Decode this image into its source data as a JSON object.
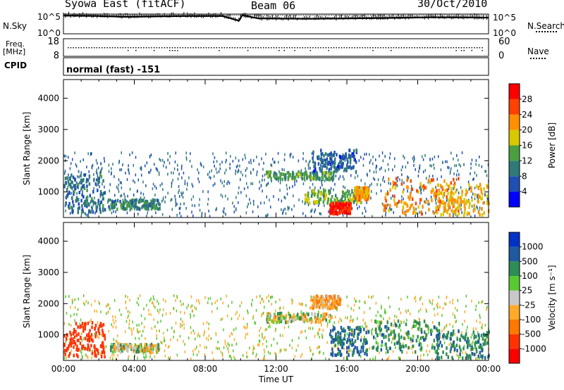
{
  "header": {
    "station": "Syowa East (fitACF)",
    "beam": "Beam 06",
    "date": "30/Oct/2010"
  },
  "left_labels": {
    "nsky": "N.Sky",
    "freq": "Freq.",
    "freq_unit": "[MHz]",
    "cpid": "CPID"
  },
  "right_labels": {
    "nsearch": "N.Search",
    "nave": "Nave"
  },
  "status": {
    "cpid_text": "normal (fast) -151"
  },
  "chart_data": [
    {
      "type": "line",
      "name": "noise-strip",
      "left_ticks": [
        "10^5",
        "10^0"
      ],
      "right_ticks": [
        "10^5",
        "10^0"
      ],
      "ylim_log10": [
        0,
        5
      ],
      "xlim_hours": [
        0,
        24
      ],
      "series": [
        {
          "label": "N.Sky",
          "style": "solid",
          "level_log10": 4.6,
          "x_hours": [
            0,
            2,
            3.5,
            5,
            7,
            9,
            9.9,
            10.1,
            11,
            14,
            18,
            21,
            24
          ],
          "y_log10": [
            4.6,
            4.5,
            4.3,
            4.4,
            4.5,
            4.5,
            3.3,
            4.7,
            3.9,
            3.8,
            4.0,
            4.2,
            4.1
          ]
        },
        {
          "label": "N.Search",
          "style": "dotted",
          "level_log10": 4.7
        }
      ]
    },
    {
      "type": "scatter",
      "name": "freq-nave-strip",
      "left_ticks": [
        "18",
        "8"
      ],
      "right_ticks": [
        "60",
        "0"
      ],
      "freq_mhz_range": [
        8,
        18
      ],
      "nave_range": [
        0,
        60
      ],
      "freq_mhz": 12.8,
      "xlim_hours": [
        0,
        24
      ]
    },
    {
      "type": "heatmap",
      "name": "power",
      "xlabel": "Time UT",
      "ylabel": "Slant Range [km]",
      "xlim_hours": [
        0,
        24
      ],
      "ylim_km": [
        180,
        4600
      ],
      "yticks": [
        "1000",
        "2000",
        "3000",
        "4000"
      ],
      "colorbar_title": "Power [dB]",
      "colorbar_ticks": [
        "4",
        "8",
        "12",
        "16",
        "20",
        "24",
        "28"
      ],
      "colorbar_colors": [
        "#0000ff",
        "#1f4fb0",
        "#2f7a78",
        "#4aa040",
        "#d8c800",
        "#ff9000",
        "#ff4000",
        "#ff0000"
      ],
      "regions": [
        {
          "t": [
            0.0,
            2.3
          ],
          "r": [
            400,
            1600
          ],
          "level": 9
        },
        {
          "t": [
            2.5,
            5.4
          ],
          "r": [
            500,
            800
          ],
          "level": 11
        },
        {
          "t": [
            11.4,
            15.2
          ],
          "r": [
            1450,
            1700
          ],
          "level": 13
        },
        {
          "t": [
            13.6,
            16.8
          ],
          "r": [
            700,
            1100
          ],
          "level": 15
        },
        {
          "t": [
            15.0,
            16.2
          ],
          "r": [
            350,
            700
          ],
          "level": 29
        },
        {
          "t": [
            16.4,
            17.2
          ],
          "r": [
            800,
            1200
          ],
          "level": 21
        },
        {
          "t": [
            18.0,
            22.3
          ],
          "r": [
            350,
            1500
          ],
          "level": 23
        },
        {
          "t": [
            21.0,
            24.0
          ],
          "r": [
            300,
            1300
          ],
          "level": 20
        },
        {
          "t": [
            14.0,
            16.5
          ],
          "r": [
            1700,
            2400
          ],
          "level": 7
        }
      ]
    },
    {
      "type": "heatmap",
      "name": "velocity",
      "xlabel": "Time UT",
      "ylabel": "Slant Range [km]",
      "xlim_hours": [
        0,
        24
      ],
      "ylim_km": [
        180,
        4600
      ],
      "yticks": [
        "1000",
        "2000",
        "3000",
        "4000"
      ],
      "xticks": [
        "00:00",
        "04:00",
        "08:00",
        "12:00",
        "16:00",
        "20:00",
        "00:00"
      ],
      "colorbar_title": "Velocity [m s⁻¹]",
      "colorbar_ticks": [
        "1000",
        "500",
        "100",
        "25",
        "-25",
        "-100",
        "-500",
        "-1000"
      ],
      "colorbar_colors": [
        "#0032c8",
        "#1f5aa0",
        "#2e8c55",
        "#5ac832",
        "#c8c8c8",
        "#ffaa28",
        "#ff7800",
        "#ff3200",
        "#ff0000"
      ],
      "regions": [
        {
          "t": [
            0.0,
            2.3
          ],
          "r": [
            350,
            1450
          ],
          "v": -500
        },
        {
          "t": [
            2.6,
            5.4
          ],
          "r": [
            500,
            750
          ],
          "v": 0
        },
        {
          "t": [
            11.4,
            15.2
          ],
          "r": [
            1450,
            1750
          ],
          "v": 0
        },
        {
          "t": [
            14.0,
            15.6
          ],
          "r": [
            1900,
            2300
          ],
          "v": -100
        },
        {
          "t": [
            15.0,
            17.2
          ],
          "r": [
            400,
            1300
          ],
          "v": 300
        },
        {
          "t": [
            17.4,
            21.2
          ],
          "r": [
            500,
            1500
          ],
          "v": 150
        },
        {
          "t": [
            21.0,
            24.0
          ],
          "r": [
            300,
            1200
          ],
          "v": 200
        }
      ]
    }
  ]
}
